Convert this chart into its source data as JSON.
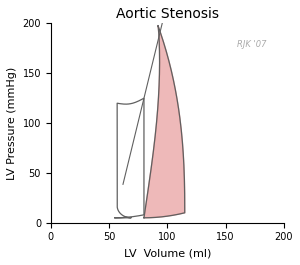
{
  "title": "Aortic Stenosis",
  "xlabel": "LV  Volume (ml)",
  "ylabel": "LV Pressure (mmHg)",
  "xlim": [
    0,
    200
  ],
  "ylim": [
    0,
    200
  ],
  "xticks": [
    0,
    50,
    100,
    150,
    200
  ],
  "yticks": [
    0,
    50,
    100,
    150,
    200
  ],
  "annotation": "RJK '07",
  "normal_color": "#606060",
  "as_fill_color": "#e08080",
  "as_fill_alpha": 0.55,
  "background": "#ffffff"
}
